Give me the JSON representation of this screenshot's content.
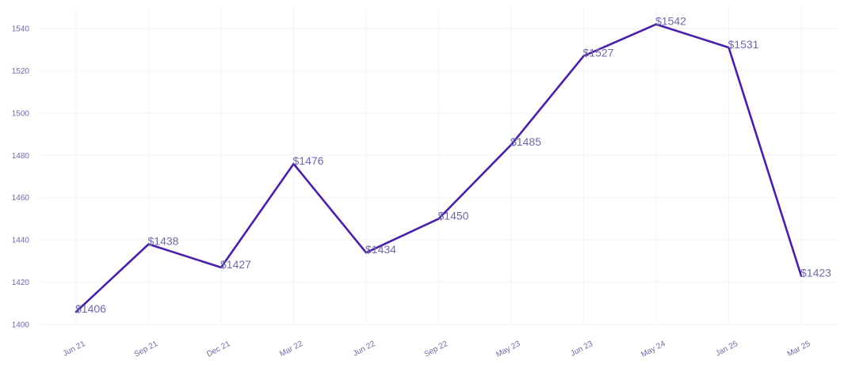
{
  "chart_data": {
    "type": "line",
    "title": "",
    "xlabel": "",
    "ylabel": "",
    "categories": [
      "Jun 21",
      "Sep 21",
      "Dec 21",
      "Mar 22",
      "Jun 22",
      "Sep 22",
      "May 23",
      "Jun 23",
      "May 24",
      "Jan 25",
      "Mar 25"
    ],
    "series": [
      {
        "values": [
          1406,
          1438,
          1427,
          1476,
          1434,
          1450,
          1485,
          1527,
          1542,
          1531,
          1423
        ],
        "labels": [
          "$1406",
          "$1438",
          "$1427",
          "$1476",
          "$1434",
          "$1450",
          "$1485",
          "$1527",
          "$1542",
          "$1531",
          "$1423"
        ],
        "color": "#4a1fa8"
      }
    ],
    "ylim": [
      1400,
      1546
    ],
    "yticks": [
      1400,
      1420,
      1440,
      1460,
      1480,
      1500,
      1520,
      1540
    ],
    "grid": true,
    "legend": "none"
  },
  "colors": {
    "line": "#4a1fa8",
    "text": "#6e6aa8",
    "grid": "#f3f3f8"
  }
}
